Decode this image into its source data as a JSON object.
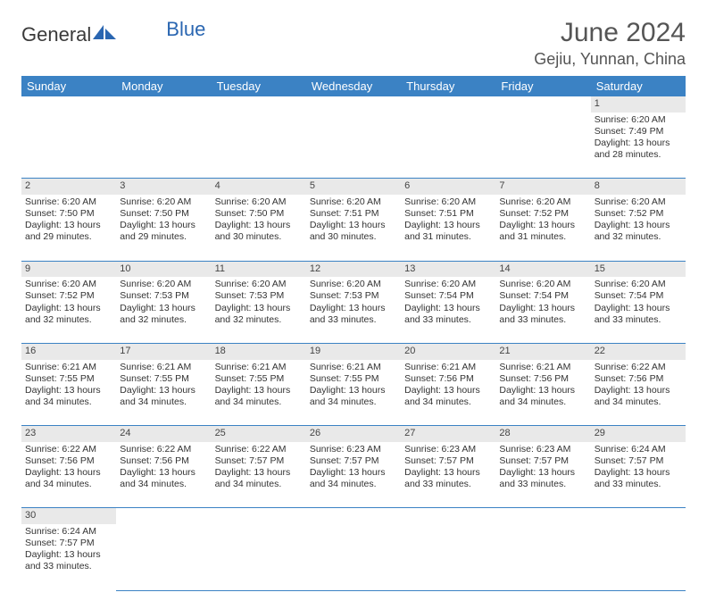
{
  "logo": {
    "text_general": "General",
    "text_blue": "Blue",
    "accent_color": "#2a66b1"
  },
  "title": "June 2024",
  "location": "Gejiu, Yunnan, China",
  "header_bg": "#3b82c4",
  "header_fg": "#ffffff",
  "daynum_bg": "#e9e9e9",
  "border_color": "#3b82c4",
  "days_of_week": [
    "Sunday",
    "Monday",
    "Tuesday",
    "Wednesday",
    "Thursday",
    "Friday",
    "Saturday"
  ],
  "weeks": [
    [
      null,
      null,
      null,
      null,
      null,
      null,
      {
        "n": "1",
        "sr": "Sunrise: 6:20 AM",
        "ss": "Sunset: 7:49 PM",
        "d1": "Daylight: 13 hours",
        "d2": "and 28 minutes."
      }
    ],
    [
      {
        "n": "2",
        "sr": "Sunrise: 6:20 AM",
        "ss": "Sunset: 7:50 PM",
        "d1": "Daylight: 13 hours",
        "d2": "and 29 minutes."
      },
      {
        "n": "3",
        "sr": "Sunrise: 6:20 AM",
        "ss": "Sunset: 7:50 PM",
        "d1": "Daylight: 13 hours",
        "d2": "and 29 minutes."
      },
      {
        "n": "4",
        "sr": "Sunrise: 6:20 AM",
        "ss": "Sunset: 7:50 PM",
        "d1": "Daylight: 13 hours",
        "d2": "and 30 minutes."
      },
      {
        "n": "5",
        "sr": "Sunrise: 6:20 AM",
        "ss": "Sunset: 7:51 PM",
        "d1": "Daylight: 13 hours",
        "d2": "and 30 minutes."
      },
      {
        "n": "6",
        "sr": "Sunrise: 6:20 AM",
        "ss": "Sunset: 7:51 PM",
        "d1": "Daylight: 13 hours",
        "d2": "and 31 minutes."
      },
      {
        "n": "7",
        "sr": "Sunrise: 6:20 AM",
        "ss": "Sunset: 7:52 PM",
        "d1": "Daylight: 13 hours",
        "d2": "and 31 minutes."
      },
      {
        "n": "8",
        "sr": "Sunrise: 6:20 AM",
        "ss": "Sunset: 7:52 PM",
        "d1": "Daylight: 13 hours",
        "d2": "and 32 minutes."
      }
    ],
    [
      {
        "n": "9",
        "sr": "Sunrise: 6:20 AM",
        "ss": "Sunset: 7:52 PM",
        "d1": "Daylight: 13 hours",
        "d2": "and 32 minutes."
      },
      {
        "n": "10",
        "sr": "Sunrise: 6:20 AM",
        "ss": "Sunset: 7:53 PM",
        "d1": "Daylight: 13 hours",
        "d2": "and 32 minutes."
      },
      {
        "n": "11",
        "sr": "Sunrise: 6:20 AM",
        "ss": "Sunset: 7:53 PM",
        "d1": "Daylight: 13 hours",
        "d2": "and 32 minutes."
      },
      {
        "n": "12",
        "sr": "Sunrise: 6:20 AM",
        "ss": "Sunset: 7:53 PM",
        "d1": "Daylight: 13 hours",
        "d2": "and 33 minutes."
      },
      {
        "n": "13",
        "sr": "Sunrise: 6:20 AM",
        "ss": "Sunset: 7:54 PM",
        "d1": "Daylight: 13 hours",
        "d2": "and 33 minutes."
      },
      {
        "n": "14",
        "sr": "Sunrise: 6:20 AM",
        "ss": "Sunset: 7:54 PM",
        "d1": "Daylight: 13 hours",
        "d2": "and 33 minutes."
      },
      {
        "n": "15",
        "sr": "Sunrise: 6:20 AM",
        "ss": "Sunset: 7:54 PM",
        "d1": "Daylight: 13 hours",
        "d2": "and 33 minutes."
      }
    ],
    [
      {
        "n": "16",
        "sr": "Sunrise: 6:21 AM",
        "ss": "Sunset: 7:55 PM",
        "d1": "Daylight: 13 hours",
        "d2": "and 34 minutes."
      },
      {
        "n": "17",
        "sr": "Sunrise: 6:21 AM",
        "ss": "Sunset: 7:55 PM",
        "d1": "Daylight: 13 hours",
        "d2": "and 34 minutes."
      },
      {
        "n": "18",
        "sr": "Sunrise: 6:21 AM",
        "ss": "Sunset: 7:55 PM",
        "d1": "Daylight: 13 hours",
        "d2": "and 34 minutes."
      },
      {
        "n": "19",
        "sr": "Sunrise: 6:21 AM",
        "ss": "Sunset: 7:55 PM",
        "d1": "Daylight: 13 hours",
        "d2": "and 34 minutes."
      },
      {
        "n": "20",
        "sr": "Sunrise: 6:21 AM",
        "ss": "Sunset: 7:56 PM",
        "d1": "Daylight: 13 hours",
        "d2": "and 34 minutes."
      },
      {
        "n": "21",
        "sr": "Sunrise: 6:21 AM",
        "ss": "Sunset: 7:56 PM",
        "d1": "Daylight: 13 hours",
        "d2": "and 34 minutes."
      },
      {
        "n": "22",
        "sr": "Sunrise: 6:22 AM",
        "ss": "Sunset: 7:56 PM",
        "d1": "Daylight: 13 hours",
        "d2": "and 34 minutes."
      }
    ],
    [
      {
        "n": "23",
        "sr": "Sunrise: 6:22 AM",
        "ss": "Sunset: 7:56 PM",
        "d1": "Daylight: 13 hours",
        "d2": "and 34 minutes."
      },
      {
        "n": "24",
        "sr": "Sunrise: 6:22 AM",
        "ss": "Sunset: 7:56 PM",
        "d1": "Daylight: 13 hours",
        "d2": "and 34 minutes."
      },
      {
        "n": "25",
        "sr": "Sunrise: 6:22 AM",
        "ss": "Sunset: 7:57 PM",
        "d1": "Daylight: 13 hours",
        "d2": "and 34 minutes."
      },
      {
        "n": "26",
        "sr": "Sunrise: 6:23 AM",
        "ss": "Sunset: 7:57 PM",
        "d1": "Daylight: 13 hours",
        "d2": "and 34 minutes."
      },
      {
        "n": "27",
        "sr": "Sunrise: 6:23 AM",
        "ss": "Sunset: 7:57 PM",
        "d1": "Daylight: 13 hours",
        "d2": "and 33 minutes."
      },
      {
        "n": "28",
        "sr": "Sunrise: 6:23 AM",
        "ss": "Sunset: 7:57 PM",
        "d1": "Daylight: 13 hours",
        "d2": "and 33 minutes."
      },
      {
        "n": "29",
        "sr": "Sunrise: 6:24 AM",
        "ss": "Sunset: 7:57 PM",
        "d1": "Daylight: 13 hours",
        "d2": "and 33 minutes."
      }
    ],
    [
      {
        "n": "30",
        "sr": "Sunrise: 6:24 AM",
        "ss": "Sunset: 7:57 PM",
        "d1": "Daylight: 13 hours",
        "d2": "and 33 minutes."
      },
      null,
      null,
      null,
      null,
      null,
      null
    ]
  ]
}
